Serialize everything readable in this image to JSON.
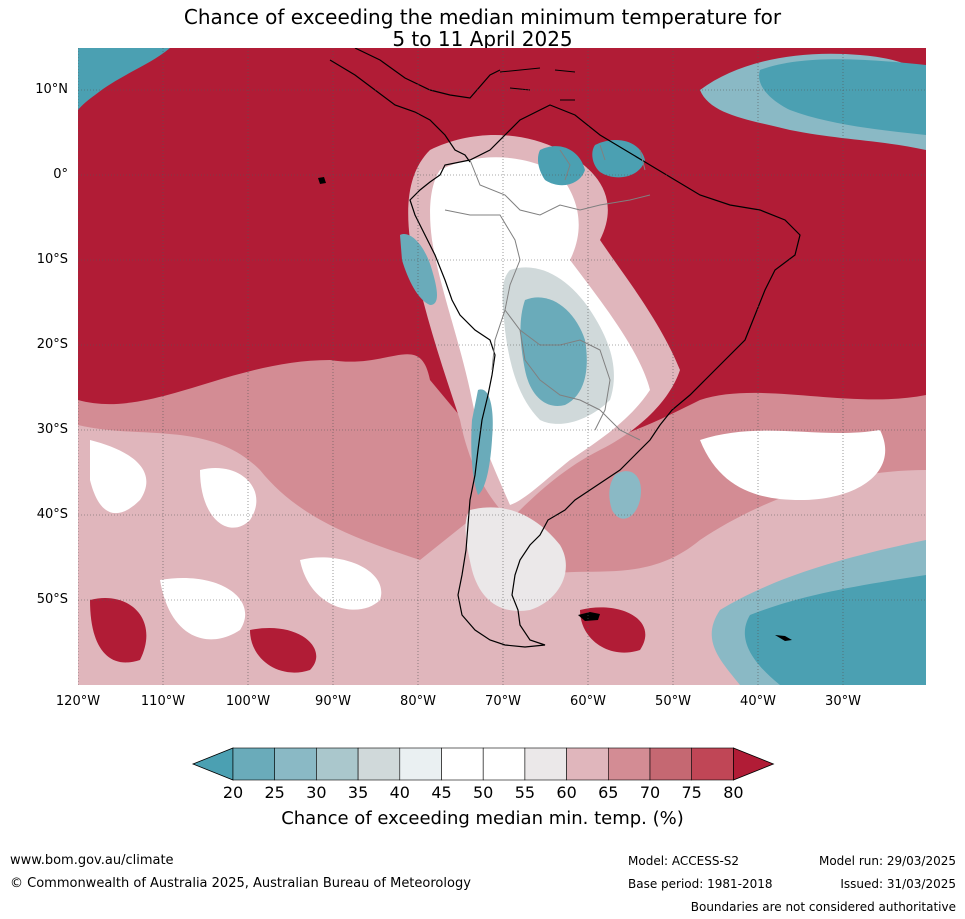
{
  "title": {
    "line1": "Chance of exceeding the median minimum temperature for",
    "line2": "5 to 11 April 2025"
  },
  "map": {
    "lat_labels": [
      "10°N",
      "0°",
      "10°S",
      "20°S",
      "30°S",
      "40°S",
      "50°S"
    ],
    "lon_labels": [
      "120°W",
      "110°W",
      "100°W",
      "90°W",
      "80°W",
      "70°W",
      "60°W",
      "50°W",
      "40°W",
      "30°W"
    ],
    "colors": {
      "high": "#b11c36",
      "low": "#4ba0b2",
      "neutral": "#ffffff",
      "coast": "#000000",
      "border": "#808080"
    }
  },
  "colorbar": {
    "ticks": [
      "20",
      "25",
      "30",
      "35",
      "40",
      "45",
      "50",
      "55",
      "60",
      "65",
      "70",
      "75",
      "80"
    ],
    "colors": [
      "#4ba0b2",
      "#6aabba",
      "#8ab9c5",
      "#aac7cc",
      "#d0d9da",
      "#eaf0f2",
      "#ffffff",
      "#ffffff",
      "#ebe8e9",
      "#e0b6bc",
      "#d38c94",
      "#c56872",
      "#c04656",
      "#b11c36"
    ],
    "label": "Chance of exceeding median min. temp. (%)"
  },
  "footer": {
    "website": "www.bom.gov.au/climate",
    "copyright": "© Commonwealth of Australia 2025, Australian Bureau of Meteorology",
    "model": "Model: ACCESS-S2",
    "base_period": "Base period: 1981-2018",
    "model_run": "Model run: 29/03/2025",
    "issued": "Issued: 31/03/2025",
    "disclaimer": "Boundaries are not considered authoritative"
  }
}
